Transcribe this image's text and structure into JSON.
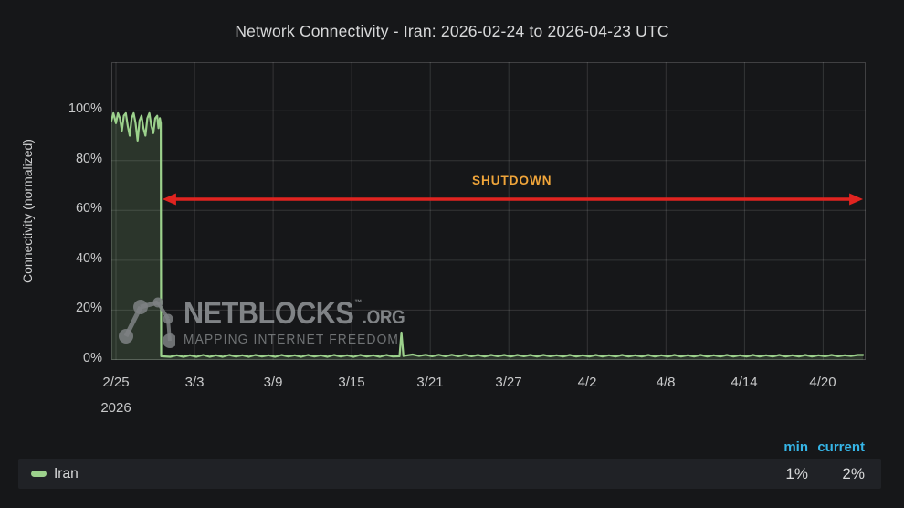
{
  "title": "Network Connectivity - Iran: 2026-02-24 to 2026-04-23 UTC",
  "colors": {
    "background": "#161719",
    "grid": "rgba(255,255,255,0.13)",
    "axis_text": "#c8c9ca",
    "title_text": "#d8d9da",
    "series_green": "#9CD18C",
    "arrow_red": "#E02420",
    "shutdown_orange": "#F0A53A",
    "legend_header_blue": "#36B6E8",
    "legend_row_bg": "#202226"
  },
  "watermark": {
    "name": "NETBLOCKS",
    "tm": "™",
    "tld": ".ORG",
    "tagline": "MAPPING INTERNET FREEDOM"
  },
  "legend": {
    "headers": {
      "min": "min",
      "current": "current"
    },
    "items": [
      {
        "label": "Iran",
        "color": "#9CD18C",
        "min": "1%",
        "current": "2%"
      }
    ]
  },
  "chart_data": {
    "type": "line",
    "title": "Network Connectivity - Iran: 2026-02-24 to 2026-04-23 UTC",
    "ylabel": "Connectivity (normalized)",
    "xlabel": "",
    "x_unit": "days since chart start (2026-02-24 UTC)",
    "x_range_days": [
      0,
      57.6
    ],
    "ylim": [
      0,
      119.5
    ],
    "grid": true,
    "legend_position": "bottom",
    "x_ticks": [
      {
        "label": "2/25",
        "day": 0.35,
        "year": "2026"
      },
      {
        "label": "3/3",
        "day": 6.35
      },
      {
        "label": "3/9",
        "day": 12.35
      },
      {
        "label": "3/15",
        "day": 18.35
      },
      {
        "label": "3/21",
        "day": 24.35
      },
      {
        "label": "3/27",
        "day": 30.35
      },
      {
        "label": "4/2",
        "day": 36.35
      },
      {
        "label": "4/8",
        "day": 42.35
      },
      {
        "label": "4/14",
        "day": 48.35
      },
      {
        "label": "4/20",
        "day": 54.35
      }
    ],
    "y_ticks": [
      {
        "label": "0%",
        "value": 0
      },
      {
        "label": "20%",
        "value": 20
      },
      {
        "label": "40%",
        "value": 40
      },
      {
        "label": "60%",
        "value": 60
      },
      {
        "label": "80%",
        "value": 80
      },
      {
        "label": "100%",
        "value": 100
      }
    ],
    "annotation": {
      "label": "SHUTDOWN",
      "label_color": "#F0A53A",
      "arrow_color": "#E02420",
      "start_day": 3.9,
      "end_day": 57.4,
      "y_value": 64.5,
      "label_day": 30.6
    },
    "series": [
      {
        "name": "Iran",
        "color": "#9CD18C",
        "fill_opacity": 0.16,
        "stats": {
          "min": "1%",
          "current": "2%"
        },
        "points": [
          [
            0,
            96
          ],
          [
            0.15,
            99
          ],
          [
            0.35,
            95
          ],
          [
            0.5,
            99
          ],
          [
            0.65,
            97
          ],
          [
            0.8,
            92
          ],
          [
            0.95,
            98
          ],
          [
            1.1,
            99
          ],
          [
            1.25,
            94
          ],
          [
            1.4,
            90
          ],
          [
            1.55,
            97
          ],
          [
            1.7,
            99
          ],
          [
            1.85,
            95
          ],
          [
            2.0,
            88
          ],
          [
            2.15,
            96
          ],
          [
            2.3,
            98
          ],
          [
            2.45,
            93
          ],
          [
            2.6,
            90
          ],
          [
            2.75,
            97
          ],
          [
            2.9,
            99
          ],
          [
            3.05,
            94
          ],
          [
            3.2,
            91
          ],
          [
            3.35,
            97
          ],
          [
            3.5,
            98
          ],
          [
            3.6,
            93
          ],
          [
            3.7,
            97
          ],
          [
            3.77,
            95
          ],
          [
            3.8,
            1.5
          ],
          [
            4.5,
            1.3
          ],
          [
            5,
            1.9
          ],
          [
            5.5,
            1.3
          ],
          [
            6,
            1.9
          ],
          [
            6.5,
            1.3
          ],
          [
            7,
            2.0
          ],
          [
            7.5,
            1.3
          ],
          [
            8,
            1.9
          ],
          [
            8.5,
            1.3
          ],
          [
            9,
            2.0
          ],
          [
            9.5,
            1.4
          ],
          [
            10,
            1.9
          ],
          [
            10.5,
            1.3
          ],
          [
            11,
            2.0
          ],
          [
            11.5,
            1.4
          ],
          [
            12,
            1.9
          ],
          [
            12.5,
            1.3
          ],
          [
            13,
            2.0
          ],
          [
            13.5,
            1.4
          ],
          [
            14,
            1.9
          ],
          [
            14.5,
            1.3
          ],
          [
            15,
            2.0
          ],
          [
            15.5,
            1.4
          ],
          [
            16,
            1.9
          ],
          [
            16.5,
            1.3
          ],
          [
            17,
            2.0
          ],
          [
            17.5,
            1.4
          ],
          [
            18,
            1.9
          ],
          [
            18.5,
            1.3
          ],
          [
            19,
            2.0
          ],
          [
            19.5,
            1.4
          ],
          [
            20,
            1.9
          ],
          [
            20.5,
            1.3
          ],
          [
            21,
            2.0
          ],
          [
            21.5,
            1.4
          ],
          [
            22,
            1.5
          ],
          [
            22.15,
            11
          ],
          [
            22.3,
            1.6
          ],
          [
            23,
            2.2
          ],
          [
            23.5,
            1.6
          ],
          [
            24,
            2.1
          ],
          [
            24.5,
            1.5
          ],
          [
            25,
            2.1
          ],
          [
            25.5,
            1.5
          ],
          [
            26,
            2.1
          ],
          [
            26.5,
            1.5
          ],
          [
            27,
            2.1
          ],
          [
            27.5,
            1.5
          ],
          [
            28,
            2.0
          ],
          [
            28.5,
            1.4
          ],
          [
            29,
            2.0
          ],
          [
            29.5,
            1.5
          ],
          [
            30,
            2.0
          ],
          [
            30.5,
            1.4
          ],
          [
            31,
            2.0
          ],
          [
            31.5,
            1.5
          ],
          [
            32,
            2.0
          ],
          [
            32.5,
            1.4
          ],
          [
            33,
            2.0
          ],
          [
            33.5,
            1.5
          ],
          [
            34,
            1.9
          ],
          [
            34.5,
            1.4
          ],
          [
            35,
            2.0
          ],
          [
            35.5,
            1.4
          ],
          [
            36,
            1.9
          ],
          [
            36.5,
            1.4
          ],
          [
            37,
            2.0
          ],
          [
            37.5,
            1.4
          ],
          [
            38,
            1.9
          ],
          [
            38.5,
            1.4
          ],
          [
            39,
            2.0
          ],
          [
            39.5,
            1.4
          ],
          [
            40,
            1.9
          ],
          [
            40.5,
            1.4
          ],
          [
            41,
            2.0
          ],
          [
            41.5,
            1.4
          ],
          [
            42,
            1.9
          ],
          [
            42.5,
            1.4
          ],
          [
            43,
            2.0
          ],
          [
            43.5,
            1.4
          ],
          [
            44,
            1.9
          ],
          [
            44.5,
            1.4
          ],
          [
            45,
            2.0
          ],
          [
            45.5,
            1.4
          ],
          [
            46,
            1.9
          ],
          [
            46.5,
            1.4
          ],
          [
            47,
            2.0
          ],
          [
            47.5,
            1.4
          ],
          [
            48,
            1.9
          ],
          [
            48.5,
            1.4
          ],
          [
            49,
            2.0
          ],
          [
            49.5,
            1.4
          ],
          [
            50,
            1.9
          ],
          [
            50.5,
            1.4
          ],
          [
            51,
            2.0
          ],
          [
            51.5,
            1.4
          ],
          [
            52,
            1.9
          ],
          [
            52.5,
            1.4
          ],
          [
            53,
            2.0
          ],
          [
            53.5,
            1.4
          ],
          [
            54,
            1.9
          ],
          [
            54.5,
            1.5
          ],
          [
            55,
            2.0
          ],
          [
            55.5,
            1.5
          ],
          [
            56,
            1.9
          ],
          [
            56.5,
            1.6
          ],
          [
            57,
            2.0
          ],
          [
            57.4,
            2.0
          ]
        ]
      }
    ]
  }
}
